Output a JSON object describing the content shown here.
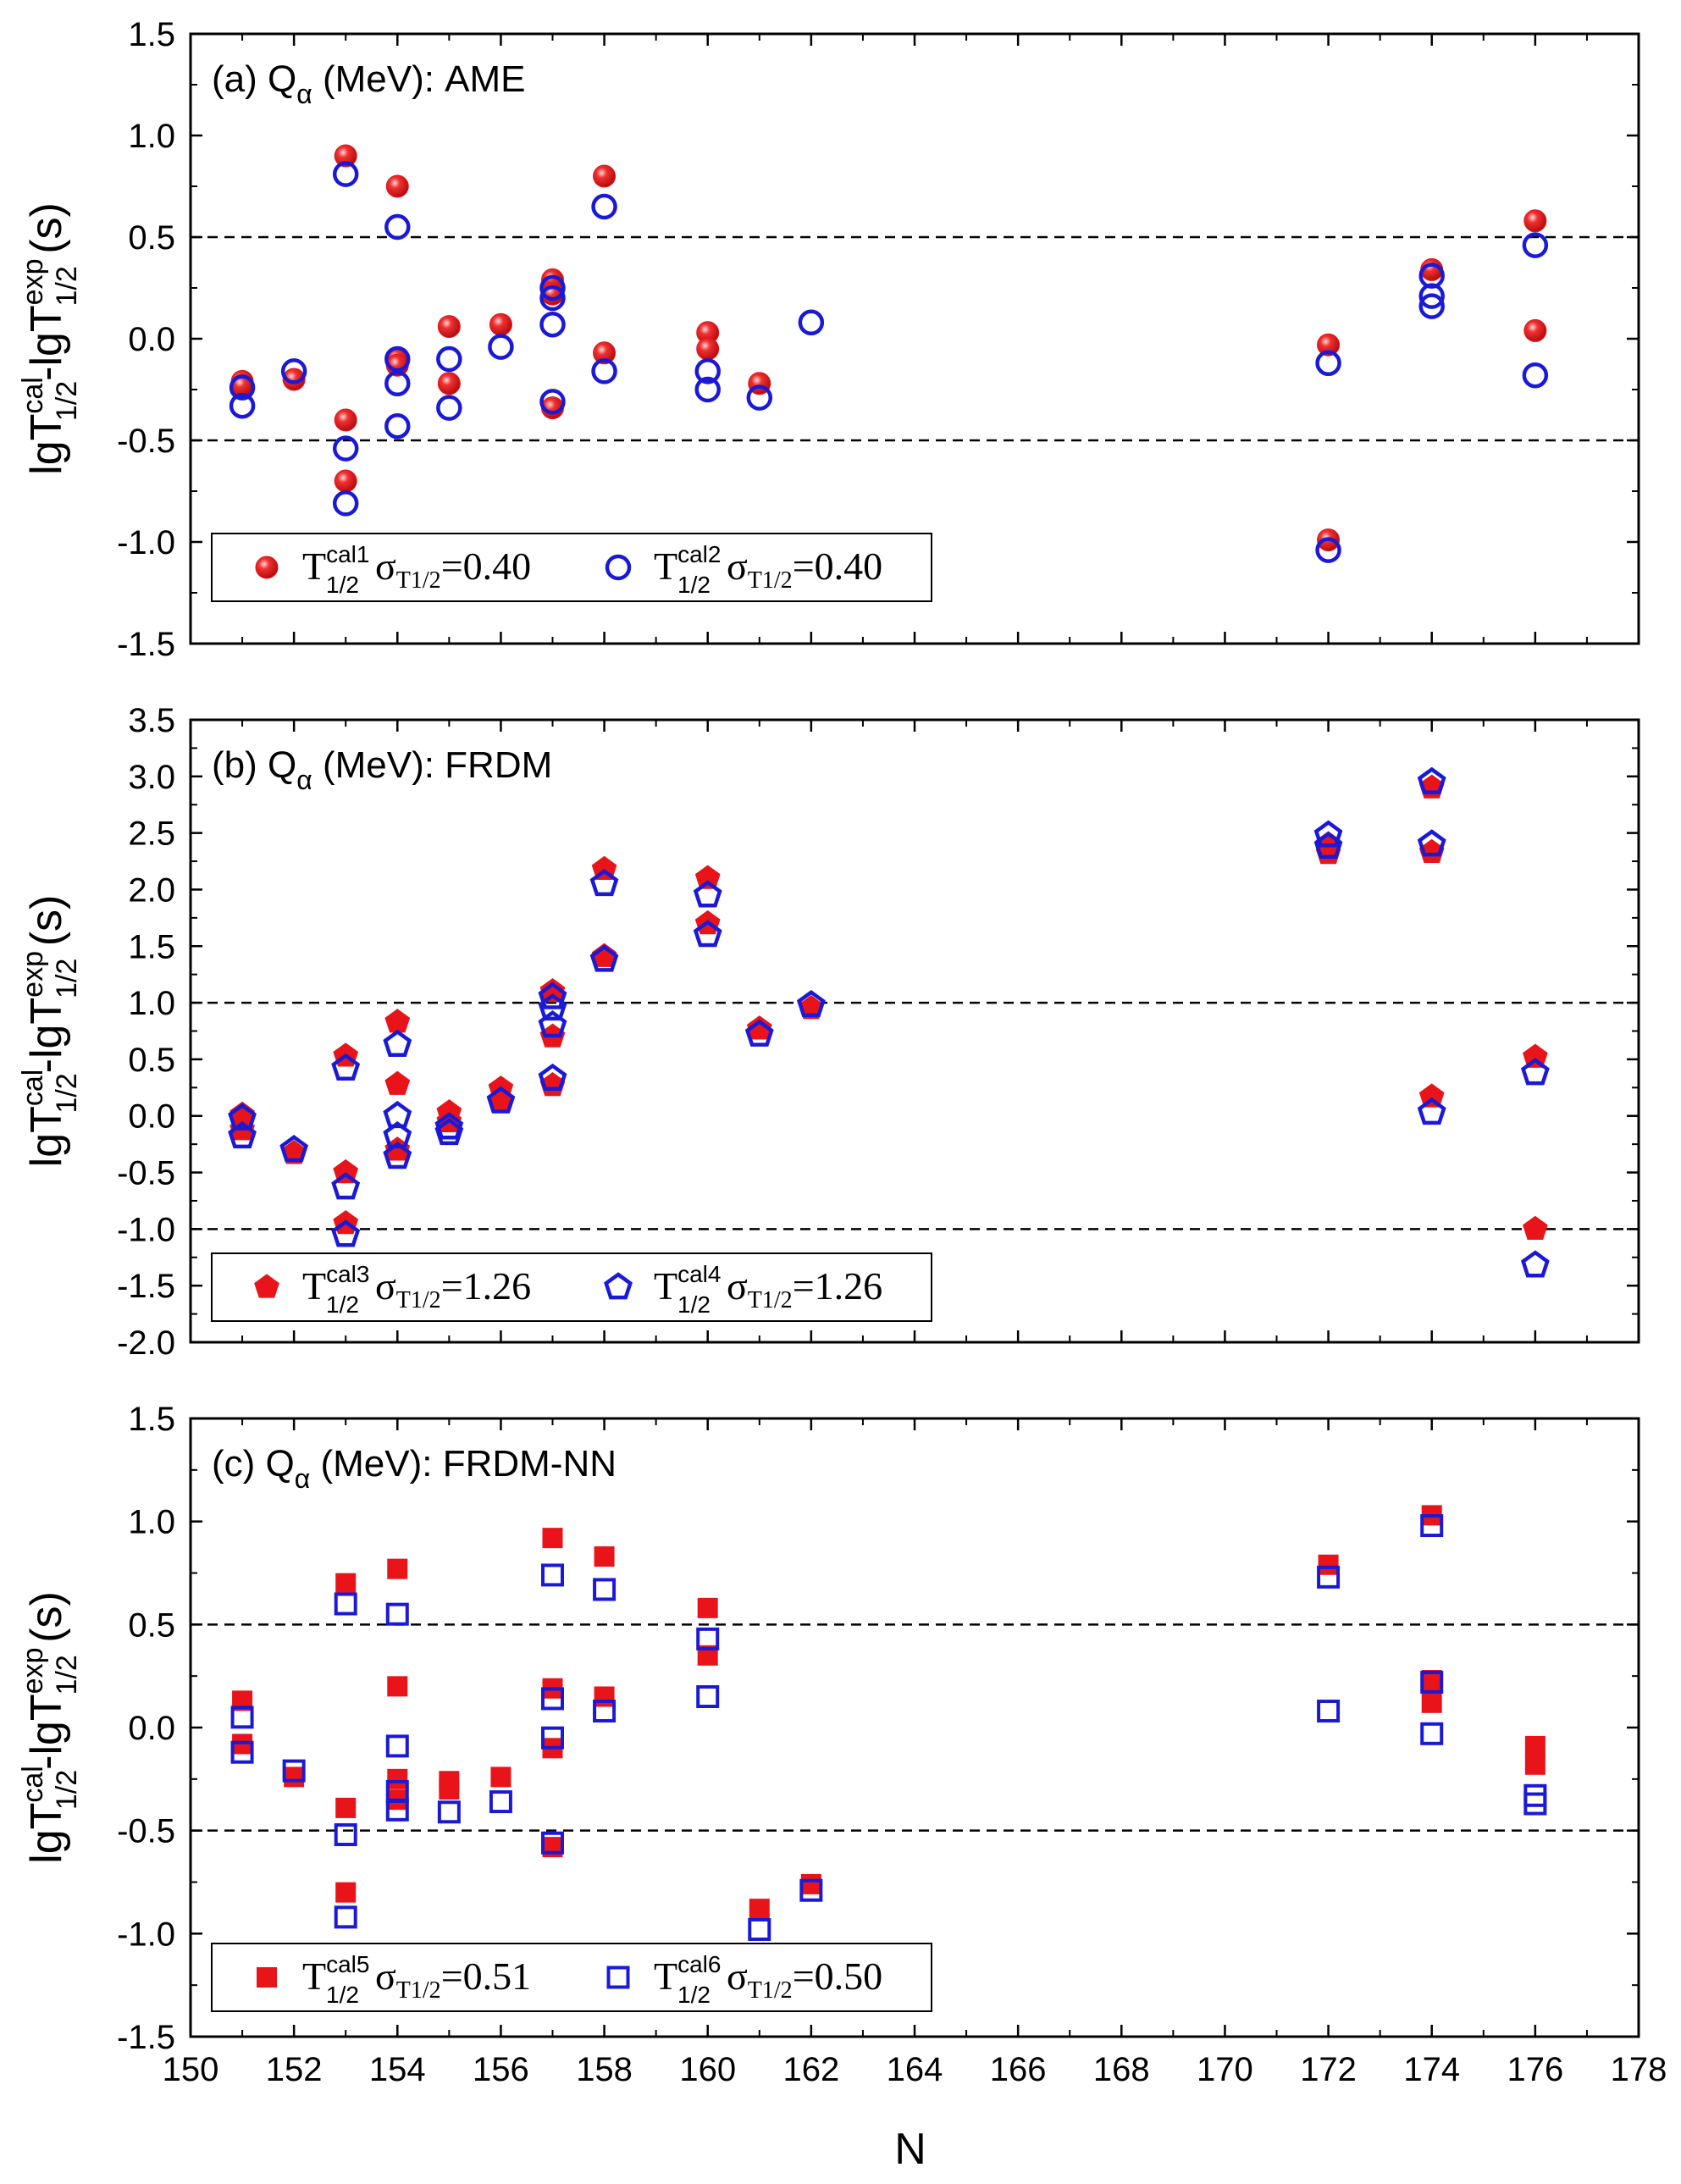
{
  "figure": {
    "xlabel": "N",
    "x_ticks": [
      150,
      152,
      154,
      156,
      158,
      160,
      162,
      164,
      166,
      168,
      170,
      172,
      174,
      176,
      178
    ],
    "ylabel": {
      "base": "lgT",
      "sup_cal": "cal",
      "sub_half": "1/2",
      "minus": "-lgT",
      "sup_exp": "exp",
      "unit": "(s)"
    }
  },
  "chart_data": [
    {
      "type": "scatter",
      "panel_label": {
        "prefix": "(a) Q",
        "sub": "α",
        "suffix": " (MeV): AME"
      },
      "xlim": [
        150,
        178
      ],
      "ylim": [
        -1.5,
        1.5
      ],
      "y_ticks": [
        "-1.5",
        "-1.0",
        "-0.5",
        "0.0",
        "0.5",
        "1.0",
        "1.5"
      ],
      "reference_lines": [
        0.5,
        -0.5
      ],
      "legend": "bottom-left",
      "series": [
        {
          "name": "T1/2cal1",
          "label_main": "T",
          "label_sup": "cal1",
          "label_sub": "1/2",
          "sigma_text": "σ",
          "sigma_sub": "T1/2",
          "sigma_value": "=0.40",
          "marker": "filled-circle",
          "color": "#e8141a",
          "points": [
            [
              151,
              -0.21
            ],
            [
              151,
              -0.23
            ],
            [
              152,
              -0.2
            ],
            [
              153,
              0.9
            ],
            [
              153,
              -0.4
            ],
            [
              153,
              -0.7
            ],
            [
              154,
              0.75
            ],
            [
              154,
              -0.1
            ],
            [
              154,
              -0.13
            ],
            [
              155,
              0.06
            ],
            [
              155,
              -0.22
            ],
            [
              156,
              0.07
            ],
            [
              157,
              0.29
            ],
            [
              157,
              0.22
            ],
            [
              157,
              -0.34
            ],
            [
              158,
              0.8
            ],
            [
              158,
              -0.07
            ],
            [
              160,
              0.03
            ],
            [
              160,
              -0.05
            ],
            [
              161,
              -0.22
            ],
            [
              172,
              -0.03
            ],
            [
              172,
              -0.99
            ],
            [
              174,
              0.34
            ],
            [
              176,
              0.58
            ],
            [
              176,
              0.04
            ]
          ]
        },
        {
          "name": "T1/2cal2",
          "label_main": "T",
          "label_sup": "cal2",
          "label_sub": "1/2",
          "sigma_text": "σ",
          "sigma_sub": "T1/2",
          "sigma_value": "=0.40",
          "marker": "open-circle",
          "color": "#1a1ad6",
          "points": [
            [
              151,
              -0.24
            ],
            [
              151,
              -0.33
            ],
            [
              152,
              -0.16
            ],
            [
              153,
              0.81
            ],
            [
              153,
              -0.54
            ],
            [
              153,
              -0.81
            ],
            [
              154,
              0.55
            ],
            [
              154,
              -0.1
            ],
            [
              154,
              -0.22
            ],
            [
              154,
              -0.43
            ],
            [
              155,
              -0.1
            ],
            [
              155,
              -0.34
            ],
            [
              156,
              -0.04
            ],
            [
              157,
              0.25
            ],
            [
              157,
              0.2
            ],
            [
              157,
              0.07
            ],
            [
              157,
              -0.31
            ],
            [
              158,
              0.65
            ],
            [
              158,
              -0.16
            ],
            [
              160,
              -0.16
            ],
            [
              160,
              -0.25
            ],
            [
              161,
              -0.29
            ],
            [
              162,
              0.08
            ],
            [
              172,
              -0.12
            ],
            [
              172,
              -1.04
            ],
            [
              174,
              0.31
            ],
            [
              174,
              0.21
            ],
            [
              174,
              0.16
            ],
            [
              176,
              0.46
            ],
            [
              176,
              -0.18
            ]
          ]
        }
      ]
    },
    {
      "type": "scatter",
      "panel_label": {
        "prefix": "(b) Q",
        "sub": "α",
        "suffix": " (MeV): FRDM"
      },
      "xlim": [
        150,
        178
      ],
      "ylim": [
        -2.0,
        3.5
      ],
      "y_ticks": [
        "-2.0",
        "-1.5",
        "-1.0",
        "-0.5",
        "0.0",
        "0.5",
        "1.0",
        "1.5",
        "2.0",
        "2.5",
        "3.0",
        "3.5"
      ],
      "reference_lines": [
        1.0,
        -1.0
      ],
      "legend": "bottom-left",
      "series": [
        {
          "name": "T1/2cal3",
          "label_main": "T",
          "label_sup": "cal3",
          "label_sub": "1/2",
          "sigma_text": "σ",
          "sigma_sub": "T1/2",
          "sigma_value": "=1.26",
          "marker": "filled-pentagon",
          "color": "#e8141a",
          "points": [
            [
              151,
              0.01
            ],
            [
              151,
              -0.12
            ],
            [
              152,
              -0.33
            ],
            [
              153,
              0.53
            ],
            [
              153,
              -0.5
            ],
            [
              153,
              -0.95
            ],
            [
              154,
              0.83
            ],
            [
              154,
              0.28
            ],
            [
              154,
              -0.3
            ],
            [
              155,
              0.03
            ],
            [
              155,
              -0.05
            ],
            [
              156,
              0.24
            ],
            [
              156,
              0.14
            ],
            [
              157,
              1.1
            ],
            [
              157,
              0.7
            ],
            [
              157,
              0.27
            ],
            [
              158,
              2.18
            ],
            [
              158,
              1.41
            ],
            [
              160,
              2.1
            ],
            [
              160,
              1.7
            ],
            [
              161,
              0.77
            ],
            [
              162,
              0.95
            ],
            [
              172,
              2.32
            ],
            [
              172,
              2.4
            ],
            [
              174,
              2.9
            ],
            [
              174,
              2.33
            ],
            [
              174,
              0.17
            ],
            [
              176,
              0.52
            ],
            [
              176,
              -1.0
            ]
          ]
        },
        {
          "name": "T1/2cal4",
          "label_main": "T",
          "label_sup": "cal4",
          "label_sub": "1/2",
          "sigma_text": "σ",
          "sigma_sub": "T1/2",
          "sigma_value": "=1.26",
          "marker": "open-pentagon",
          "color": "#1a1ad6",
          "points": [
            [
              151,
              -0.02
            ],
            [
              151,
              -0.18
            ],
            [
              152,
              -0.3
            ],
            [
              153,
              0.42
            ],
            [
              153,
              -0.63
            ],
            [
              153,
              -1.05
            ],
            [
              154,
              0.63
            ],
            [
              154,
              0.0
            ],
            [
              154,
              -0.18
            ],
            [
              154,
              -0.36
            ],
            [
              155,
              -0.1
            ],
            [
              155,
              -0.15
            ],
            [
              156,
              0.13
            ],
            [
              157,
              1.05
            ],
            [
              157,
              0.95
            ],
            [
              157,
              0.8
            ],
            [
              157,
              0.33
            ],
            [
              158,
              2.05
            ],
            [
              158,
              1.38
            ],
            [
              160,
              1.95
            ],
            [
              160,
              1.6
            ],
            [
              161,
              0.72
            ],
            [
              162,
              0.98
            ],
            [
              172,
              2.48
            ],
            [
              172,
              2.38
            ],
            [
              174,
              2.95
            ],
            [
              174,
              2.4
            ],
            [
              174,
              0.03
            ],
            [
              176,
              0.38
            ],
            [
              176,
              -1.32
            ]
          ]
        }
      ]
    },
    {
      "type": "scatter",
      "panel_label": {
        "prefix": "(c) Q",
        "sub": "α",
        "suffix": " (MeV): FRDM-NN"
      },
      "xlim": [
        150,
        178
      ],
      "ylim": [
        -1.5,
        1.5
      ],
      "y_ticks": [
        "-1.5",
        "-1.0",
        "-0.5",
        "0.0",
        "0.5",
        "1.0",
        "1.5"
      ],
      "reference_lines": [
        0.5,
        -0.5
      ],
      "legend": "bottom-left",
      "series": [
        {
          "name": "T1/2cal5",
          "label_main": "T",
          "label_sup": "cal5",
          "label_sub": "1/2",
          "sigma_text": "σ",
          "sigma_sub": "T1/2",
          "sigma_value": "=0.51",
          "marker": "filled-square",
          "color": "#e8141a",
          "points": [
            [
              151,
              0.13
            ],
            [
              151,
              -0.08
            ],
            [
              152,
              -0.24
            ],
            [
              153,
              0.7
            ],
            [
              153,
              -0.39
            ],
            [
              153,
              -0.8
            ],
            [
              154,
              0.77
            ],
            [
              154,
              0.2
            ],
            [
              154,
              -0.25
            ],
            [
              154,
              -0.35
            ],
            [
              155,
              -0.26
            ],
            [
              155,
              -0.3
            ],
            [
              156,
              -0.24
            ],
            [
              157,
              0.92
            ],
            [
              157,
              0.19
            ],
            [
              157,
              -0.1
            ],
            [
              157,
              -0.58
            ],
            [
              158,
              0.83
            ],
            [
              158,
              0.15
            ],
            [
              160,
              0.58
            ],
            [
              160,
              0.35
            ],
            [
              161,
              -0.88
            ],
            [
              162,
              -0.76
            ],
            [
              172,
              0.79
            ],
            [
              174,
              1.03
            ],
            [
              174,
              0.23
            ],
            [
              174,
              0.12
            ],
            [
              176,
              -0.09
            ],
            [
              176,
              -0.18
            ]
          ]
        },
        {
          "name": "T1/2cal6",
          "label_main": "T",
          "label_sup": "cal6",
          "label_sub": "1/2",
          "sigma_text": "σ",
          "sigma_sub": "T1/2",
          "sigma_value": "=0.50",
          "marker": "open-square",
          "color": "#1a1ad6",
          "points": [
            [
              151,
              0.05
            ],
            [
              151,
              -0.12
            ],
            [
              152,
              -0.21
            ],
            [
              153,
              0.6
            ],
            [
              153,
              -0.52
            ],
            [
              153,
              -0.92
            ],
            [
              154,
              0.55
            ],
            [
              154,
              -0.09
            ],
            [
              154,
              -0.31
            ],
            [
              154,
              -0.4
            ],
            [
              155,
              -0.41
            ],
            [
              156,
              -0.36
            ],
            [
              157,
              0.74
            ],
            [
              157,
              0.14
            ],
            [
              157,
              -0.05
            ],
            [
              157,
              -0.56
            ],
            [
              158,
              0.67
            ],
            [
              158,
              0.08
            ],
            [
              160,
              0.43
            ],
            [
              160,
              0.15
            ],
            [
              161,
              -0.98
            ],
            [
              162,
              -0.79
            ],
            [
              172,
              0.73
            ],
            [
              172,
              0.08
            ],
            [
              174,
              0.98
            ],
            [
              174,
              0.22
            ],
            [
              174,
              -0.03
            ],
            [
              176,
              -0.33
            ],
            [
              176,
              -0.37
            ]
          ]
        }
      ]
    }
  ]
}
